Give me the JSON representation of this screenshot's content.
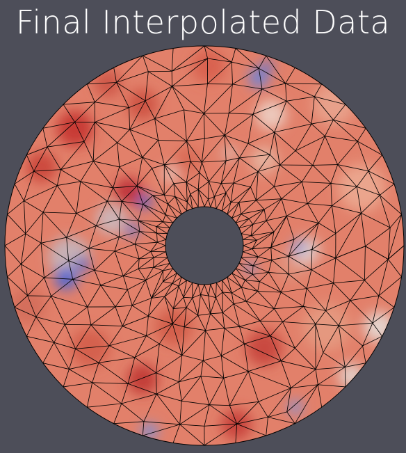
{
  "title": "Final Interpolated Data",
  "colors": {
    "background": "#4d4e59",
    "title_text": "#ffffff",
    "colormap_low": "#3b4cc0",
    "colormap_mid": "#dddddd",
    "colormap_high": "#b40426",
    "mesh_edges": "#000000"
  },
  "visualization": {
    "type": "annular-triangle-mesh",
    "colormap": "cool-to-warm",
    "edges_visible": true
  }
}
